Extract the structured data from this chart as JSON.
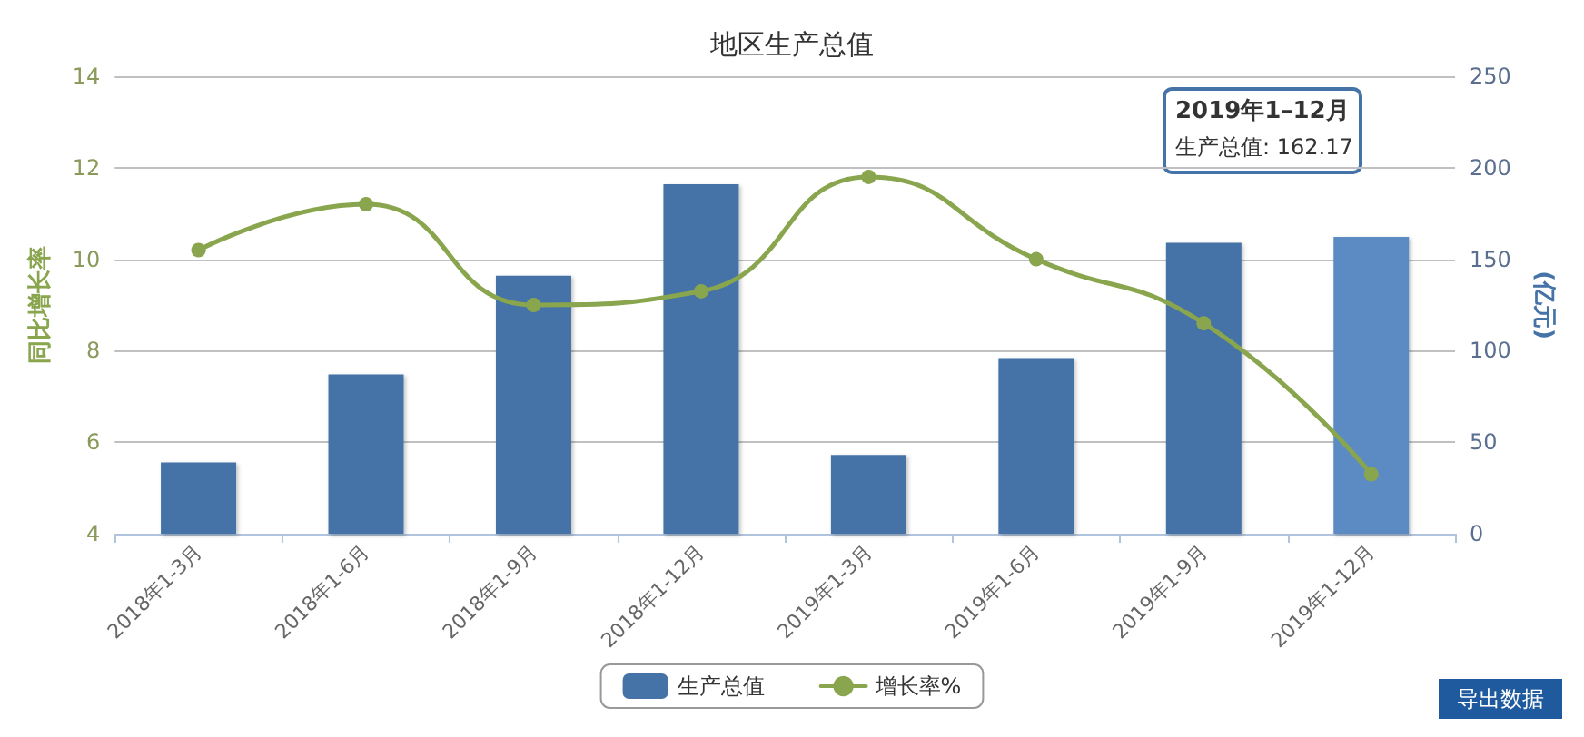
{
  "chart_data": {
    "type": "bar",
    "title": "地区生产总值",
    "ylabel": "同比增长率",
    "y2label": "(亿元)",
    "categories": [
      "2018年1-3月",
      "2018年1-6月",
      "2018年1-9月",
      "2018年1-12月",
      "2019年1-3月",
      "2019年1-6月",
      "2019年1-9月",
      "2019年1-12月"
    ],
    "series": [
      {
        "name": "生产总值",
        "type": "bar",
        "axis": "y2",
        "color": "#4572a7",
        "colors": [
          "#4572a7",
          "#4572a7",
          "#4572a7",
          "#4572a7",
          "#4572a7",
          "#4572a7",
          "#4572a7",
          "#5b8bc4"
        ],
        "values": [
          39,
          87,
          141,
          191,
          43,
          96,
          159,
          162.17
        ]
      },
      {
        "name": "增长率%",
        "type": "line",
        "color": "#89a54e",
        "marker": "circle",
        "values": [
          10.2,
          11.2,
          9.0,
          9.3,
          11.8,
          10.0,
          8.6,
          5.3
        ]
      }
    ],
    "ylim": [
      4,
      14
    ],
    "yticks": [
      4,
      6,
      8,
      10,
      12,
      14
    ],
    "y2lim": [
      0,
      250
    ],
    "y2ticks": [
      0,
      50,
      100,
      150,
      200,
      250
    ],
    "grid": "y",
    "legend": "bottom",
    "annotations": [
      "2019年1–12月",
      "生产总值: 162.17",
      "导出数据"
    ]
  }
}
